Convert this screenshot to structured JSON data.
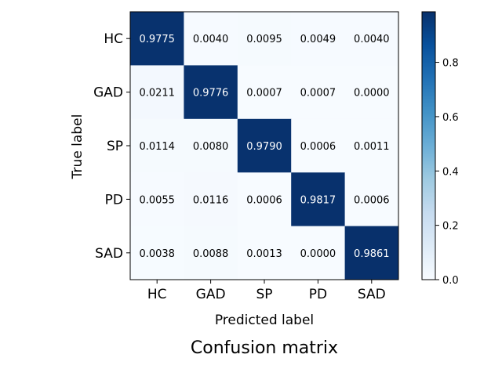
{
  "chart_data": {
    "type": "heatmap",
    "title": "Confusion matrix",
    "xlabel": "Predicted label",
    "ylabel": "True label",
    "x_categories": [
      "HC",
      "GAD",
      "SP",
      "PD",
      "SAD"
    ],
    "y_categories": [
      "HC",
      "GAD",
      "SP",
      "PD",
      "SAD"
    ],
    "values": [
      [
        0.9775,
        0.004,
        0.0095,
        0.0049,
        0.004
      ],
      [
        0.0211,
        0.9776,
        0.0007,
        0.0007,
        0.0
      ],
      [
        0.0114,
        0.008,
        0.979,
        0.0006,
        0.0011
      ],
      [
        0.0055,
        0.0116,
        0.0006,
        0.9817,
        0.0006
      ],
      [
        0.0038,
        0.0088,
        0.0013,
        0.0,
        0.9861
      ]
    ],
    "value_labels": [
      [
        "0.9775",
        "0.0040",
        "0.0095",
        "0.0049",
        "0.0040"
      ],
      [
        "0.0211",
        "0.9776",
        "0.0007",
        "0.0007",
        "0.0000"
      ],
      [
        "0.0114",
        "0.0080",
        "0.9790",
        "0.0006",
        "0.0011"
      ],
      [
        "0.0055",
        "0.0116",
        "0.0006",
        "0.9817",
        "0.0006"
      ],
      [
        "0.0038",
        "0.0088",
        "0.0013",
        "0.0000",
        "0.9861"
      ]
    ],
    "colormap": "Blues",
    "color_range": [
      0,
      0.9861
    ],
    "colorbar_ticks": [
      0.0,
      0.2,
      0.4,
      0.6,
      0.8
    ],
    "colorbar_tick_labels": [
      "0.0",
      "0.2",
      "0.4",
      "0.6",
      "0.8"
    ],
    "colorbar": "right",
    "grid": false
  }
}
